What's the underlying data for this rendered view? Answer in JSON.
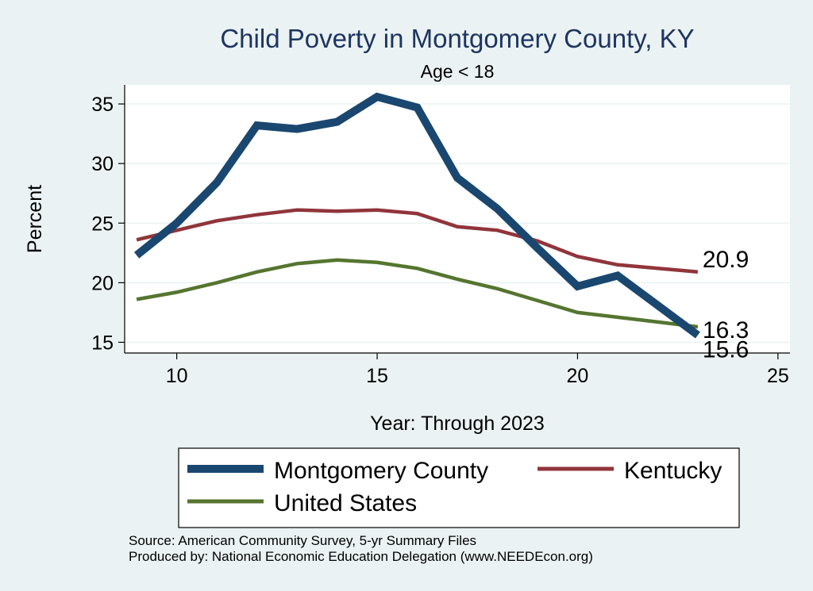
{
  "chart_data": {
    "type": "line",
    "title": "Child Poverty in Montgomery County, KY",
    "subtitle": "Age < 18",
    "xlabel": "Year: Through 2023",
    "ylabel": "Percent",
    "xlim": [
      8.7,
      25.3
    ],
    "ylim": [
      14.1,
      36.6
    ],
    "xticks": [
      10,
      15,
      20,
      25
    ],
    "yticks": [
      15,
      20,
      25,
      30,
      35
    ],
    "grid": true,
    "legend_position": "bottom",
    "x": [
      9,
      10,
      11,
      12,
      13,
      14,
      15,
      16,
      17,
      18,
      19,
      20,
      21,
      22,
      23
    ],
    "series": [
      {
        "name": "Montgomery County",
        "color": "#1a476f",
        "values": [
          22.3,
          25.0,
          28.4,
          33.2,
          32.9,
          33.5,
          35.6,
          34.7,
          28.8,
          26.2,
          22.9,
          19.7,
          20.6,
          18.1,
          15.6
        ],
        "end_label": "15.6"
      },
      {
        "name": "Kentucky",
        "color": "#90353b",
        "values": [
          23.6,
          24.4,
          25.2,
          25.7,
          26.1,
          26.0,
          26.1,
          25.8,
          24.7,
          24.4,
          23.5,
          22.2,
          21.5,
          21.2,
          20.9
        ],
        "end_label": "20.9"
      },
      {
        "name": "United States",
        "color": "#55752f",
        "values": [
          18.6,
          19.2,
          20.0,
          20.9,
          21.6,
          21.9,
          21.7,
          21.2,
          20.3,
          19.5,
          18.5,
          17.5,
          17.1,
          16.7,
          16.3
        ],
        "end_label": "16.3"
      }
    ]
  },
  "footer": {
    "source": "Source: American Community Survey, 5-yr Summary Files",
    "produced_by": "Produced by: National Economic Education Delegation (www.NEEDEcon.org)"
  }
}
